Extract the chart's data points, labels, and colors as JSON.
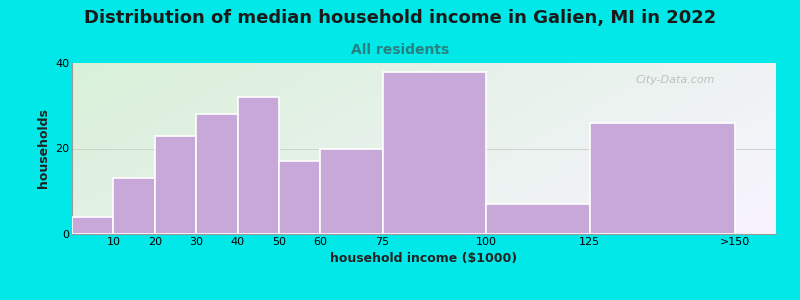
{
  "title": "Distribution of median household income in Galien, MI in 2022",
  "subtitle": "All residents",
  "xlabel": "household income ($1000)",
  "ylabel": "households",
  "bar_labels": [
    "10",
    "20",
    "30",
    "40",
    "50",
    "60",
    "75",
    "100",
    "125",
    ">150"
  ],
  "bar_values": [
    4,
    13,
    23,
    28,
    32,
    17,
    20,
    38,
    7,
    26
  ],
  "bar_color": "#c8a8d8",
  "bar_edgecolor": "#ffffff",
  "ylim": [
    0,
    40
  ],
  "yticks": [
    0,
    20,
    40
  ],
  "background_color": "#00e8e8",
  "plot_bg_top_left": "#d8f0d8",
  "plot_bg_bottom_right": "#f8f4ff",
  "title_fontsize": 13,
  "subtitle_fontsize": 10,
  "title_color": "#1a1a1a",
  "subtitle_color": "#2a8080",
  "axis_label_fontsize": 9,
  "tick_fontsize": 8,
  "watermark_text": "City-Data.com",
  "left_edges": [
    0,
    10,
    20,
    30,
    40,
    50,
    60,
    75,
    100,
    125
  ],
  "right_edges": [
    10,
    20,
    30,
    40,
    50,
    60,
    75,
    100,
    125,
    160
  ],
  "xtick_positions": [
    10,
    20,
    30,
    40,
    50,
    60,
    75,
    100,
    125,
    160
  ],
  "xlim": [
    0,
    170
  ]
}
